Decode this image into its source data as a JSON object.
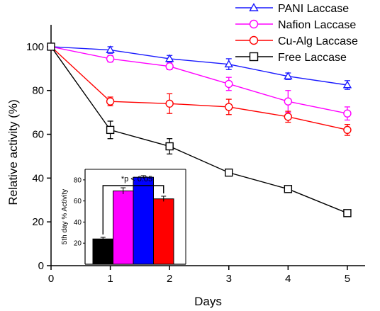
{
  "chart_data": [
    {
      "type": "line",
      "xlabel": "Days",
      "ylabel": "Relative activity (%)",
      "xlim": [
        0,
        5.3
      ],
      "ylim": [
        0,
        110
      ],
      "x_ticks": [
        0,
        1,
        2,
        3,
        4,
        5
      ],
      "y_ticks": [
        0,
        20,
        40,
        60,
        80,
        100
      ],
      "legend_position": "top-right",
      "x": [
        0,
        1,
        2,
        3,
        4,
        5
      ],
      "series": [
        {
          "name": "PANI Laccase",
          "marker": "triangle",
          "color": "#1a1aff",
          "values": [
            100,
            98.5,
            94.5,
            92,
            86.5,
            82.5
          ],
          "errors": [
            0.5,
            1.5,
            1.5,
            2.5,
            1.5,
            2
          ]
        },
        {
          "name": "Nafion Laccase",
          "marker": "circle",
          "color": "#ff00ff",
          "values": [
            100,
            94.5,
            91,
            83,
            75,
            69.5
          ],
          "errors": [
            0.5,
            1.5,
            1.5,
            3,
            5,
            3
          ]
        },
        {
          "name": "Cu-Alg Laccase",
          "marker": "circle",
          "color": "#ff0000",
          "values": [
            100,
            75,
            74,
            72.5,
            68,
            62
          ],
          "errors": [
            0.5,
            2,
            4.5,
            3.5,
            2.5,
            2.5
          ]
        },
        {
          "name": "Free Laccase",
          "marker": "square",
          "color": "#000000",
          "values": [
            100,
            62,
            54.5,
            42.5,
            35,
            24
          ],
          "errors": [
            0.5,
            4,
            3.5,
            1.5,
            1.5,
            1.5
          ]
        }
      ]
    },
    {
      "type": "bar",
      "ylabel": "5th day % Activity",
      "ylim": [
        0,
        90
      ],
      "y_ticks": [
        20,
        40,
        60,
        80
      ],
      "categories": [
        "Free Laccase",
        "Nafion Laccase",
        "PANI Laccase",
        "Cu-Alg Laccase"
      ],
      "values": [
        24,
        69.5,
        82.5,
        62
      ],
      "errors": [
        1.5,
        3,
        1.5,
        2.5
      ],
      "colors": [
        "#000000",
        "#ff00ff",
        "#0000ff",
        "#ff0000"
      ],
      "annotation": "*p < 0.05"
    }
  ]
}
